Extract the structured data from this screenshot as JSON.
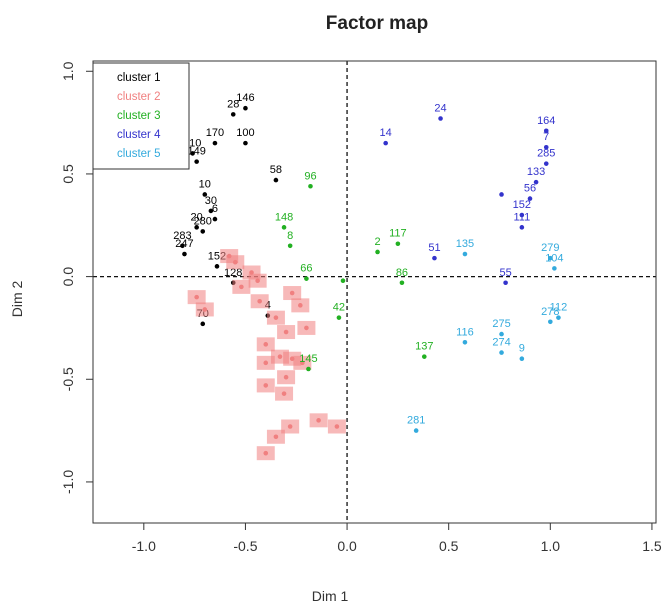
{
  "chart_data": {
    "type": "scatter",
    "title": "Factor map",
    "xlabel": "Dim 1",
    "ylabel": "Dim 2",
    "xlim": [
      -1.25,
      1.52
    ],
    "ylim": [
      -1.2,
      1.05
    ],
    "xticks": [
      "-1.0",
      "-0.5",
      "0.0",
      "0.5",
      "1.0",
      "1.5"
    ],
    "xtick_values": [
      -1.0,
      -0.5,
      0.0,
      0.5,
      1.0,
      1.5
    ],
    "yticks": [
      "-1.0",
      "-0.5",
      "0.0",
      "0.5",
      "1.0"
    ],
    "ytick_values": [
      -1.0,
      -0.5,
      0.0,
      0.5,
      1.0
    ],
    "reference_lines": [
      {
        "axis": "x",
        "value": 0,
        "style": "dashed"
      },
      {
        "axis": "y",
        "value": 0,
        "style": "dashed"
      }
    ],
    "legend": {
      "placement": "top-left",
      "boxed": true
    },
    "series": [
      {
        "name": "cluster 1",
        "color": "#000000",
        "points": [
          {
            "label": "146",
            "x": -0.5,
            "y": 0.82
          },
          {
            "label": "28",
            "x": -0.56,
            "y": 0.79
          },
          {
            "label": "100",
            "x": -0.5,
            "y": 0.65
          },
          {
            "label": "170",
            "x": -0.65,
            "y": 0.65
          },
          {
            "label": "110",
            "x": -0.76,
            "y": 0.6
          },
          {
            "label": "149",
            "x": -0.74,
            "y": 0.56
          },
          {
            "label": "58",
            "x": -0.35,
            "y": 0.47
          },
          {
            "label": "10",
            "x": -0.7,
            "y": 0.4
          },
          {
            "label": "30",
            "x": -0.67,
            "y": 0.32
          },
          {
            "label": "6",
            "x": -0.65,
            "y": 0.28
          },
          {
            "label": "20",
            "x": -0.74,
            "y": 0.24
          },
          {
            "label": "280",
            "x": -0.71,
            "y": 0.22
          },
          {
            "label": "283",
            "x": -0.81,
            "y": 0.15
          },
          {
            "label": "247",
            "x": -0.8,
            "y": 0.11
          },
          {
            "label": "152",
            "x": -0.64,
            "y": 0.05
          },
          {
            "label": "128",
            "x": -0.56,
            "y": -0.03
          },
          {
            "label": "4",
            "x": -0.39,
            "y": -0.19
          },
          {
            "label": "70",
            "x": -0.71,
            "y": -0.23
          }
        ]
      },
      {
        "name": "cluster 2",
        "color": "#f08080",
        "points": [
          {
            "label": "",
            "x": -0.58,
            "y": 0.1
          },
          {
            "label": "",
            "x": -0.55,
            "y": 0.07
          },
          {
            "label": "",
            "x": -0.47,
            "y": 0.02
          },
          {
            "label": "",
            "x": -0.44,
            "y": -0.02
          },
          {
            "label": "",
            "x": -0.52,
            "y": -0.05
          },
          {
            "label": "",
            "x": -0.74,
            "y": -0.1
          },
          {
            "label": "",
            "x": -0.7,
            "y": -0.16
          },
          {
            "label": "",
            "x": -0.43,
            "y": -0.12
          },
          {
            "label": "",
            "x": -0.35,
            "y": -0.2
          },
          {
            "label": "",
            "x": -0.27,
            "y": -0.08
          },
          {
            "label": "",
            "x": -0.23,
            "y": -0.14
          },
          {
            "label": "",
            "x": -0.2,
            "y": -0.25
          },
          {
            "label": "",
            "x": -0.3,
            "y": -0.27
          },
          {
            "label": "",
            "x": -0.4,
            "y": -0.33
          },
          {
            "label": "",
            "x": -0.4,
            "y": -0.42
          },
          {
            "label": "",
            "x": -0.33,
            "y": -0.39
          },
          {
            "label": "",
            "x": -0.27,
            "y": -0.4
          },
          {
            "label": "",
            "x": -0.22,
            "y": -0.42
          },
          {
            "label": "",
            "x": -0.3,
            "y": -0.49
          },
          {
            "label": "",
            "x": -0.4,
            "y": -0.53
          },
          {
            "label": "",
            "x": -0.31,
            "y": -0.57
          },
          {
            "label": "",
            "x": -0.14,
            "y": -0.7
          },
          {
            "label": "",
            "x": -0.28,
            "y": -0.73
          },
          {
            "label": "",
            "x": -0.35,
            "y": -0.78
          },
          {
            "label": "",
            "x": -0.4,
            "y": -0.86
          },
          {
            "label": "",
            "x": -0.05,
            "y": -0.73
          }
        ]
      },
      {
        "name": "cluster 3",
        "color": "#22b022",
        "points": [
          {
            "label": "96",
            "x": -0.18,
            "y": 0.44
          },
          {
            "label": "148",
            "x": -0.31,
            "y": 0.24
          },
          {
            "label": "8",
            "x": -0.28,
            "y": 0.15
          },
          {
            "label": "117",
            "x": 0.25,
            "y": 0.16
          },
          {
            "label": "2",
            "x": 0.15,
            "y": 0.12
          },
          {
            "label": "66",
            "x": -0.2,
            "y": -0.01
          },
          {
            "label": "",
            "x": -0.02,
            "y": -0.02
          },
          {
            "label": "86",
            "x": 0.27,
            "y": -0.03
          },
          {
            "label": "42",
            "x": -0.04,
            "y": -0.2
          },
          {
            "label": "137",
            "x": 0.38,
            "y": -0.39
          },
          {
            "label": "145",
            "x": -0.19,
            "y": -0.45
          }
        ]
      },
      {
        "name": "cluster 4",
        "color": "#3333cc",
        "points": [
          {
            "label": "24",
            "x": 0.46,
            "y": 0.77
          },
          {
            "label": "164",
            "x": 0.98,
            "y": 0.71
          },
          {
            "label": "14",
            "x": 0.19,
            "y": 0.65
          },
          {
            "label": "7",
            "x": 0.98,
            "y": 0.63
          },
          {
            "label": "285",
            "x": 0.98,
            "y": 0.55
          },
          {
            "label": "133",
            "x": 0.93,
            "y": 0.46
          },
          {
            "label": "56",
            "x": 0.9,
            "y": 0.38
          },
          {
            "label": "",
            "x": 0.76,
            "y": 0.4
          },
          {
            "label": "152",
            "x": 0.86,
            "y": 0.3
          },
          {
            "label": "111",
            "x": 0.86,
            "y": 0.24
          },
          {
            "label": "51",
            "x": 0.43,
            "y": 0.09
          },
          {
            "label": "55",
            "x": 0.78,
            "y": -0.03
          }
        ]
      },
      {
        "name": "cluster 5",
        "color": "#33aadd",
        "points": [
          {
            "label": "135",
            "x": 0.58,
            "y": 0.11
          },
          {
            "label": "279",
            "x": 1.0,
            "y": 0.09
          },
          {
            "label": "104",
            "x": 1.02,
            "y": 0.04
          },
          {
            "label": "278",
            "x": 1.0,
            "y": -0.22
          },
          {
            "label": "112",
            "x": 1.04,
            "y": -0.2
          },
          {
            "label": "116",
            "x": 0.58,
            "y": -0.32
          },
          {
            "label": "275",
            "x": 0.76,
            "y": -0.28
          },
          {
            "label": "274",
            "x": 0.76,
            "y": -0.37
          },
          {
            "label": "9",
            "x": 0.86,
            "y": -0.4
          },
          {
            "label": "281",
            "x": 0.34,
            "y": -0.75
          }
        ]
      }
    ]
  }
}
